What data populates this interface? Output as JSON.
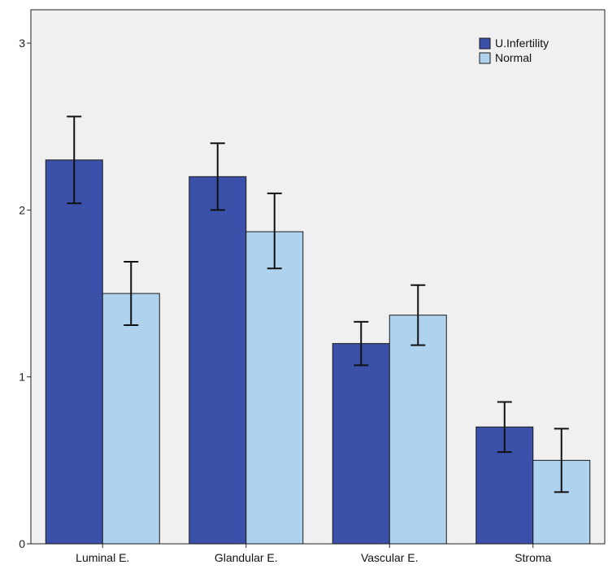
{
  "chart_data": {
    "type": "bar",
    "categories": [
      "Luminal E.",
      "Glandular E.",
      "Vascular E.",
      "Stroma"
    ],
    "series": [
      {
        "name": "U.Infertility",
        "color": "#3b50a8",
        "values": [
          2.3,
          2.2,
          1.2,
          0.7
        ],
        "error_low": [
          2.04,
          2.0,
          1.07,
          0.55
        ],
        "error_high": [
          2.56,
          2.4,
          1.33,
          0.85
        ]
      },
      {
        "name": "Normal",
        "color": "#afd3ee",
        "values": [
          1.5,
          1.87,
          1.37,
          0.5
        ],
        "error_low": [
          1.31,
          1.65,
          1.19,
          0.31
        ],
        "error_high": [
          1.69,
          2.1,
          1.55,
          0.69
        ]
      }
    ],
    "y_ticks": [
      "0",
      "1",
      "2",
      "3"
    ],
    "ylim": [
      0,
      3.2
    ],
    "grid": false,
    "legend_position": "top-right",
    "background": "#f0f0f0"
  }
}
